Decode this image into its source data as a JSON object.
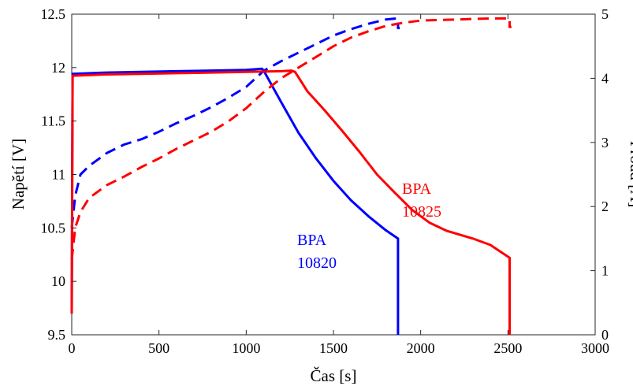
{
  "chart_data": {
    "type": "line",
    "xlabel": "Čas [s]",
    "ylabel_left": "Napětí [V]",
    "ylabel_right": "Proud [A]",
    "xlim": [
      0,
      3000
    ],
    "ylim_left": [
      9.5,
      12.5
    ],
    "ylim_right": [
      0,
      5
    ],
    "x_ticks": [
      0,
      500,
      1000,
      1500,
      2000,
      2500,
      3000
    ],
    "y_left_ticks": [
      9.5,
      10,
      10.5,
      11,
      11.5,
      12,
      12.5
    ],
    "y_right_ticks": [
      0,
      1,
      2,
      3,
      4,
      5
    ],
    "grid": false,
    "colors": {
      "blue": "#0000ff",
      "red": "#ff0000"
    },
    "series": [
      {
        "color": "#0000ff",
        "axis": "left",
        "style": "dashed",
        "points": [
          [
            0,
            10.5
          ],
          [
            20,
            10.8
          ],
          [
            50,
            11.0
          ],
          [
            100,
            11.08
          ],
          [
            200,
            11.2
          ],
          [
            300,
            11.28
          ],
          [
            400,
            11.33
          ],
          [
            500,
            11.4
          ],
          [
            600,
            11.48
          ],
          [
            700,
            11.55
          ],
          [
            800,
            11.63
          ],
          [
            900,
            11.72
          ],
          [
            1000,
            11.82
          ],
          [
            1100,
            11.97
          ],
          [
            1200,
            12.06
          ],
          [
            1300,
            12.14
          ],
          [
            1400,
            12.22
          ],
          [
            1500,
            12.3
          ],
          [
            1600,
            12.36
          ],
          [
            1700,
            12.41
          ],
          [
            1800,
            12.45
          ],
          [
            1860,
            12.46
          ],
          [
            1870,
            12.46
          ],
          [
            1870,
            12.37
          ],
          [
            1880,
            12.37
          ]
        ]
      },
      {
        "color": "#0000ff",
        "axis": "right",
        "style": "solid",
        "points": [
          [
            0,
            0.33
          ],
          [
            5,
            4.07
          ],
          [
            200,
            4.09
          ],
          [
            400,
            4.1
          ],
          [
            600,
            4.11
          ],
          [
            800,
            4.12
          ],
          [
            1000,
            4.13
          ],
          [
            1090,
            4.15
          ],
          [
            1100,
            4.12
          ],
          [
            1200,
            3.63
          ],
          [
            1300,
            3.15
          ],
          [
            1400,
            2.75
          ],
          [
            1500,
            2.4
          ],
          [
            1600,
            2.1
          ],
          [
            1700,
            1.85
          ],
          [
            1800,
            1.63
          ],
          [
            1870,
            1.5
          ],
          [
            1870,
            0.0
          ]
        ]
      },
      {
        "color": "#ff0000",
        "axis": "left",
        "style": "dashed",
        "points": [
          [
            0,
            10.2
          ],
          [
            20,
            10.5
          ],
          [
            50,
            10.65
          ],
          [
            100,
            10.78
          ],
          [
            200,
            10.9
          ],
          [
            300,
            10.98
          ],
          [
            400,
            11.07
          ],
          [
            500,
            11.15
          ],
          [
            600,
            11.24
          ],
          [
            700,
            11.32
          ],
          [
            800,
            11.4
          ],
          [
            900,
            11.5
          ],
          [
            1000,
            11.62
          ],
          [
            1100,
            11.77
          ],
          [
            1200,
            11.9
          ],
          [
            1300,
            12.0
          ],
          [
            1400,
            12.1
          ],
          [
            1500,
            12.2
          ],
          [
            1600,
            12.28
          ],
          [
            1700,
            12.34
          ],
          [
            1800,
            12.39
          ],
          [
            1900,
            12.42
          ],
          [
            2000,
            12.44
          ],
          [
            2200,
            12.45
          ],
          [
            2400,
            12.46
          ],
          [
            2510,
            12.46
          ],
          [
            2510,
            12.38
          ],
          [
            2520,
            12.38
          ]
        ]
      },
      {
        "color": "#ff0000",
        "axis": "right",
        "style": "solid",
        "points": [
          [
            0,
            0.33
          ],
          [
            5,
            4.04
          ],
          [
            200,
            4.06
          ],
          [
            400,
            4.07
          ],
          [
            600,
            4.08
          ],
          [
            800,
            4.09
          ],
          [
            1000,
            4.1
          ],
          [
            1200,
            4.11
          ],
          [
            1260,
            4.12
          ],
          [
            1280,
            4.1
          ],
          [
            1350,
            3.8
          ],
          [
            1450,
            3.5
          ],
          [
            1550,
            3.18
          ],
          [
            1650,
            2.85
          ],
          [
            1750,
            2.5
          ],
          [
            1850,
            2.22
          ],
          [
            1950,
            1.95
          ],
          [
            2050,
            1.75
          ],
          [
            2150,
            1.62
          ],
          [
            2300,
            1.5
          ],
          [
            2400,
            1.4
          ],
          [
            2510,
            1.2
          ],
          [
            2510,
            0.0
          ]
        ]
      }
    ],
    "annotations": [
      {
        "lines": [
          "BPA",
          "10820"
        ],
        "color": "#0000ff"
      },
      {
        "lines": [
          "BPA",
          "10825"
        ],
        "color": "#ff0000"
      }
    ]
  }
}
